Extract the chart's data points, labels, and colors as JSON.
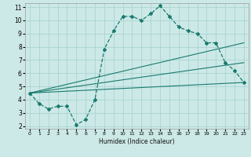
{
  "xlabel": "Humidex (Indice chaleur)",
  "xlim": [
    -0.5,
    23.5
  ],
  "ylim": [
    1.8,
    11.3
  ],
  "xticks": [
    0,
    1,
    2,
    3,
    4,
    5,
    6,
    7,
    8,
    9,
    10,
    11,
    12,
    13,
    14,
    15,
    16,
    17,
    18,
    19,
    20,
    21,
    22,
    23
  ],
  "yticks": [
    2,
    3,
    4,
    5,
    6,
    7,
    8,
    9,
    10,
    11
  ],
  "bg_color": "#cce9e7",
  "grid_color": "#aad4d0",
  "line_color": "#1a7a6e",
  "series": [
    {
      "x": [
        0,
        1,
        2,
        3,
        4,
        5,
        6,
        7,
        8,
        9,
        10,
        11,
        12,
        13,
        14,
        15,
        16,
        17,
        18,
        19,
        20,
        21,
        22,
        23
      ],
      "y": [
        4.5,
        3.7,
        3.3,
        3.5,
        3.5,
        2.1,
        2.5,
        4.0,
        7.8,
        9.2,
        10.3,
        10.3,
        10.0,
        10.5,
        11.1,
        10.3,
        9.5,
        9.2,
        9.0,
        8.3,
        8.3,
        6.8,
        6.2,
        5.3
      ],
      "marker": "D",
      "linestyle": "--"
    },
    {
      "x": [
        0,
        23
      ],
      "y": [
        4.5,
        5.3
      ],
      "linestyle": "-"
    },
    {
      "x": [
        0,
        23
      ],
      "y": [
        4.5,
        6.8
      ],
      "linestyle": "-"
    },
    {
      "x": [
        0,
        23
      ],
      "y": [
        4.5,
        8.3
      ],
      "linestyle": "-"
    }
  ]
}
